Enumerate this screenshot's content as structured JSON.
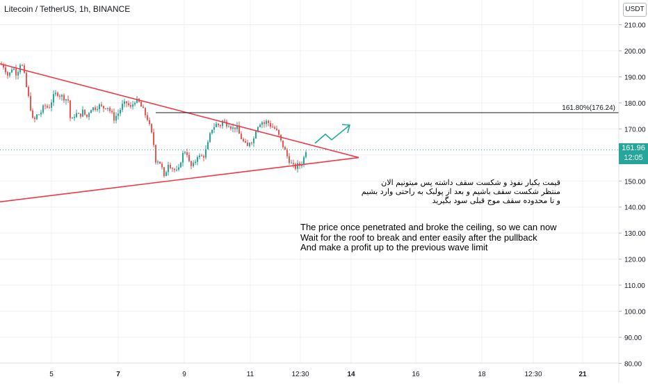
{
  "header": {
    "title": "Litecoin / TetherUS, 1h, BINANCE",
    "currency": "USDT"
  },
  "last_price": {
    "value": "161.96",
    "countdown": "12:05"
  },
  "annotations": {
    "fib_label": "161.80%(176.24)",
    "persian_lines": [
      "قیمت یکبار نفوذ و شکست سقف داشته پس میتونیم الان",
      "منتظر شکست سقف باشیم و بعد از پولبک به  راحتی وارد بشیم",
      "و تا محدوده سقف موج قبلی سود بگیرید"
    ],
    "english_lines": [
      "The price once penetrated and broke the ceiling, so we can now",
      "Wait for the roof to break and enter easily after the pullback",
      "And make a profit up to the previous wave limit"
    ]
  },
  "colors": {
    "up": "#26a69a",
    "down": "#ef5350",
    "trendline": "#f23645",
    "arrow": "#22ab94",
    "fib_line": "#131722",
    "last_price_line": "#26a69a",
    "grid": "#eef0f3"
  },
  "chart_data": {
    "type": "candlestick",
    "symbol": "LTCUSDT",
    "interval": "1h",
    "y_axis": {
      "ticks": [
        "210.00",
        "200.00",
        "190.00",
        "180.00",
        "170.00",
        "160.00",
        "150.00",
        "140.00",
        "130.00",
        "120.00",
        "110.00",
        "100.00",
        "90.00",
        "80.00"
      ],
      "ylim": [
        80,
        214
      ]
    },
    "x_axis": {
      "ticks": [
        {
          "label": "5",
          "bold": false
        },
        {
          "label": "7",
          "bold": true
        },
        {
          "label": "9",
          "bold": false
        },
        {
          "label": "11",
          "bold": false
        },
        {
          "label": "12:30",
          "bold": false
        },
        {
          "label": "14",
          "bold": true
        },
        {
          "label": "16",
          "bold": false
        },
        {
          "label": "18",
          "bold": false
        },
        {
          "label": "12:30",
          "bold": false
        },
        {
          "label": "21",
          "bold": true
        }
      ]
    },
    "close_path": [
      [
        0,
        195
      ],
      [
        6,
        194
      ],
      [
        12,
        190
      ],
      [
        18,
        194
      ],
      [
        24,
        191
      ],
      [
        30,
        196
      ],
      [
        34,
        192
      ],
      [
        38,
        186
      ],
      [
        44,
        178
      ],
      [
        48,
        172
      ],
      [
        52,
        175
      ],
      [
        58,
        176
      ],
      [
        64,
        179
      ],
      [
        70,
        178
      ],
      [
        76,
        182
      ],
      [
        82,
        184
      ],
      [
        86,
        183
      ],
      [
        92,
        182
      ],
      [
        98,
        181
      ],
      [
        102,
        172
      ],
      [
        108,
        176
      ],
      [
        114,
        175
      ],
      [
        120,
        177
      ],
      [
        124,
        174
      ],
      [
        130,
        178
      ],
      [
        136,
        178
      ],
      [
        142,
        179
      ],
      [
        148,
        178
      ],
      [
        154,
        179
      ],
      [
        160,
        176
      ],
      [
        164,
        174
      ],
      [
        170,
        176
      ],
      [
        176,
        179
      ],
      [
        182,
        180
      ],
      [
        188,
        178
      ],
      [
        194,
        181
      ],
      [
        200,
        180
      ],
      [
        206,
        177
      ],
      [
        212,
        174
      ],
      [
        216,
        170
      ],
      [
        220,
        166
      ],
      [
        224,
        158
      ],
      [
        228,
        158
      ],
      [
        232,
        156
      ],
      [
        236,
        151
      ],
      [
        242,
        157
      ],
      [
        248,
        155
      ],
      [
        252,
        154
      ],
      [
        256,
        153
      ],
      [
        260,
        158
      ],
      [
        264,
        161
      ],
      [
        268,
        162
      ],
      [
        272,
        157
      ],
      [
        276,
        155
      ],
      [
        280,
        157
      ],
      [
        284,
        160
      ],
      [
        288,
        159
      ],
      [
        294,
        160
      ],
      [
        300,
        165
      ],
      [
        304,
        170
      ],
      [
        308,
        171
      ],
      [
        312,
        172
      ],
      [
        316,
        171
      ],
      [
        320,
        173
      ],
      [
        326,
        172
      ],
      [
        330,
        172
      ],
      [
        334,
        170
      ],
      [
        340,
        171
      ],
      [
        344,
        168
      ],
      [
        348,
        166
      ],
      [
        352,
        164
      ],
      [
        356,
        163
      ],
      [
        360,
        166
      ],
      [
        364,
        165
      ],
      [
        368,
        170
      ],
      [
        372,
        172
      ],
      [
        376,
        173
      ],
      [
        380,
        172
      ],
      [
        384,
        173
      ],
      [
        390,
        171
      ],
      [
        396,
        170
      ],
      [
        400,
        168
      ],
      [
        404,
        165
      ],
      [
        408,
        163
      ],
      [
        412,
        160
      ],
      [
        416,
        158
      ],
      [
        420,
        156
      ],
      [
        424,
        155
      ],
      [
        428,
        156
      ],
      [
        432,
        156
      ],
      [
        436,
        158
      ],
      [
        440,
        161.96
      ]
    ],
    "overlays": [
      {
        "name": "upper-trendline",
        "from": [
          0,
          195
        ],
        "to": [
          516,
          159
        ]
      },
      {
        "name": "lower-trendline",
        "from": [
          0,
          142
        ],
        "to": [
          516,
          159
        ]
      },
      {
        "name": "fib-161.8",
        "price": 176.24,
        "x_from": 224
      }
    ]
  }
}
